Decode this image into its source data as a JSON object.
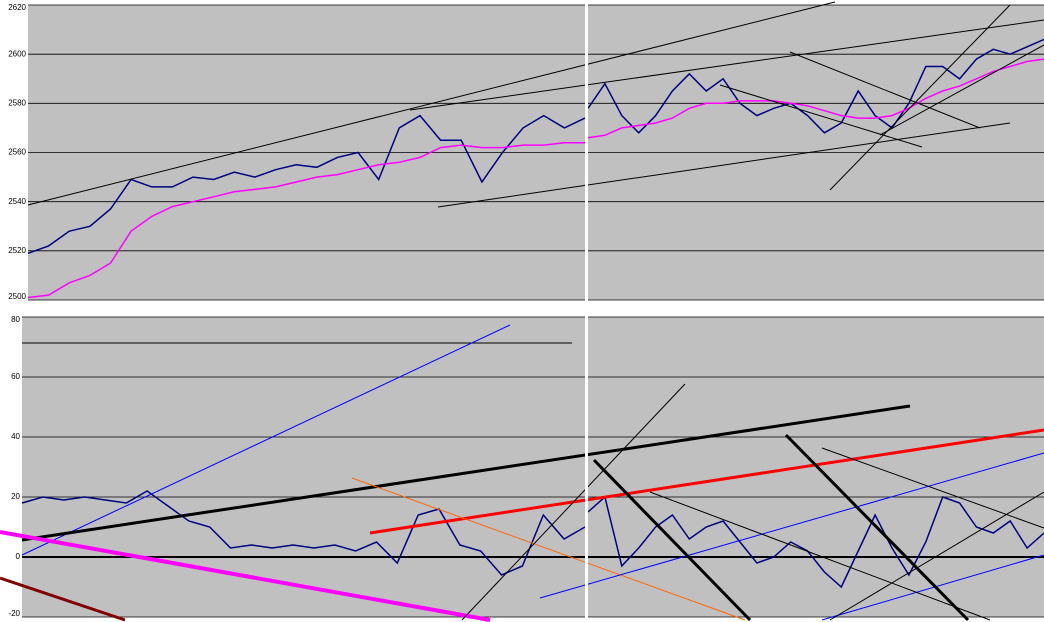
{
  "chart_data": [
    {
      "type": "line",
      "ylim": [
        2500,
        2620
      ],
      "yticks": [
        2500,
        2520,
        2540,
        2560,
        2580,
        2600,
        2620
      ],
      "grid": true,
      "series": [
        {
          "color": "#000080",
          "values": [
            2519,
            2522,
            2528,
            2530,
            2537,
            2549,
            2546,
            2546,
            2550,
            2549,
            2552,
            2550,
            2553,
            2555,
            2554,
            2558,
            2560,
            2549,
            2570,
            2575,
            2565,
            2565,
            2548,
            2560,
            2570,
            2575,
            2570,
            2574
          ]
        },
        {
          "color": "#ff00ff",
          "values": [
            2501,
            2502,
            2507,
            2510,
            2515,
            2528,
            2534,
            2538,
            2540,
            2542,
            2544,
            2545,
            2546,
            2548,
            2550,
            2551,
            2553,
            2555,
            2556,
            2558,
            2562,
            2563,
            2562,
            2562,
            2563,
            2563,
            2564,
            2564
          ]
        }
      ]
    },
    {
      "type": "line",
      "ylim": [
        2500,
        2620
      ],
      "grid": true,
      "series": [
        {
          "color": "#000080",
          "values": [
            2578,
            2588,
            2575,
            2568,
            2575,
            2585,
            2592,
            2585,
            2590,
            2580,
            2575,
            2578,
            2580,
            2575,
            2568,
            2572,
            2585,
            2575,
            2570,
            2580,
            2595,
            2595,
            2590,
            2598,
            2602,
            2600,
            2603,
            2606
          ]
        },
        {
          "color": "#ff00ff",
          "values": [
            2566,
            2567,
            2570,
            2571,
            2572,
            2574,
            2578,
            2580,
            2580,
            2581,
            2581,
            2581,
            2580,
            2579,
            2577,
            2575,
            2574,
            2574,
            2575,
            2578,
            2582,
            2585,
            2587,
            2590,
            2593,
            2595,
            2597,
            2598
          ]
        }
      ]
    },
    {
      "type": "line",
      "ylim": [
        -20,
        80
      ],
      "yticks": [
        -20,
        0,
        20,
        40,
        60,
        80
      ],
      "grid": true,
      "series": [
        {
          "color": "#000080",
          "values": [
            18,
            20,
            19,
            20,
            19,
            18,
            22,
            17,
            12,
            10,
            3,
            4,
            3,
            4,
            3,
            4,
            2,
            5,
            -2,
            14,
            16,
            4,
            2,
            -6,
            -3,
            14,
            6,
            10
          ]
        }
      ]
    },
    {
      "type": "line",
      "ylim": [
        -20,
        80
      ],
      "grid": true,
      "series": [
        {
          "color": "#000080",
          "values": [
            15,
            20,
            -3,
            3,
            10,
            14,
            6,
            10,
            12,
            5,
            -2,
            0,
            5,
            2,
            -5,
            -10,
            2,
            14,
            3,
            -6,
            5,
            20,
            18,
            10,
            8,
            12,
            3,
            8
          ]
        }
      ]
    }
  ]
}
